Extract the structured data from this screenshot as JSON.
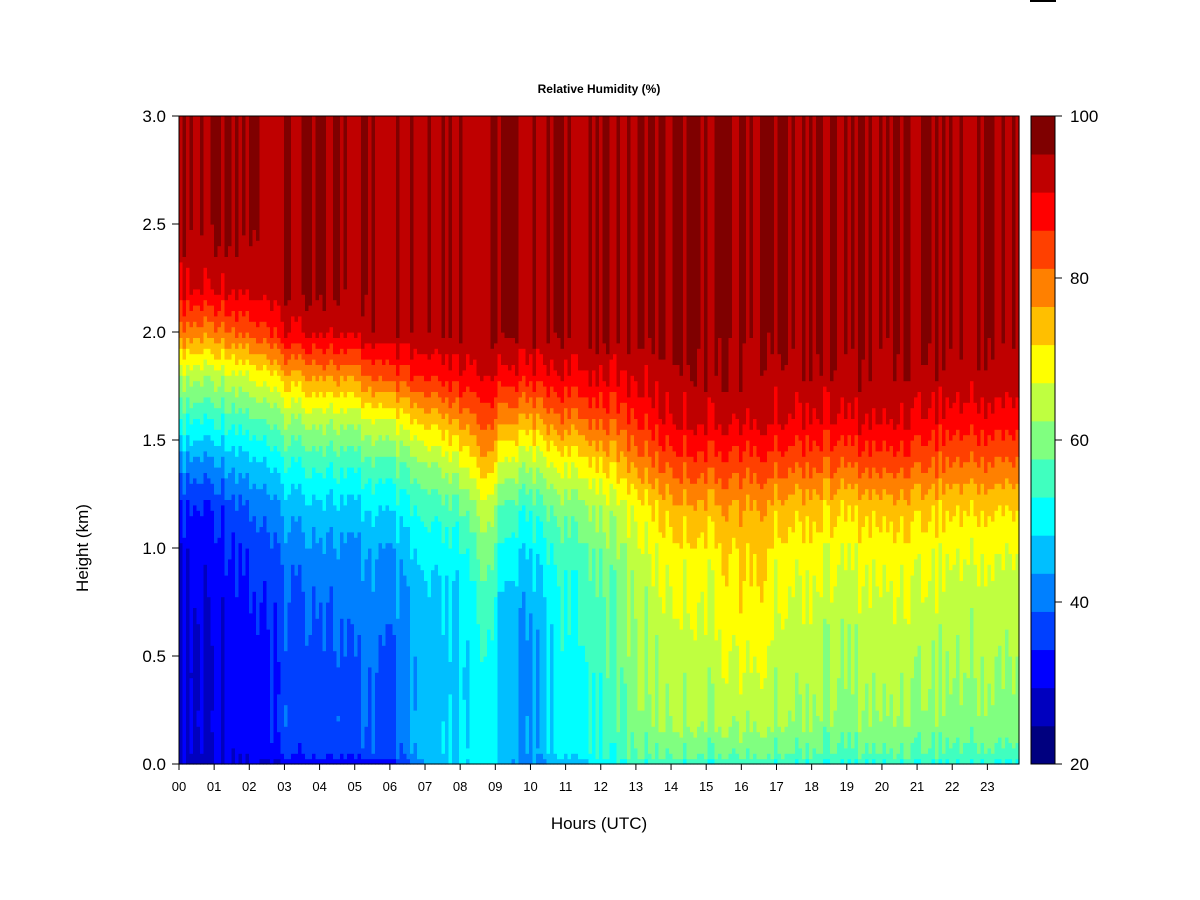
{
  "chart_data": {
    "type": "heatmap",
    "title": "Relative Humidity (%)",
    "xlabel": "Hours (UTC)",
    "ylabel": "Height (km)",
    "x_ticks": [
      "00",
      "01",
      "02",
      "03",
      "04",
      "05",
      "06",
      "07",
      "08",
      "09",
      "10",
      "11",
      "12",
      "13",
      "14",
      "15",
      "16",
      "17",
      "18",
      "19",
      "20",
      "21",
      "22",
      "23"
    ],
    "xlim": [
      0,
      23.9
    ],
    "y_ticks": [
      "0.0",
      "0.5",
      "1.0",
      "1.5",
      "2.0",
      "2.5",
      "3.0"
    ],
    "ylim": [
      0,
      3.0
    ],
    "colorbar": {
      "min": 20,
      "max": 100,
      "step": 5,
      "tick_labels": [
        "20",
        "40",
        "60",
        "80",
        "100"
      ],
      "colors": [
        "#00007F",
        "#0000BF",
        "#0000FF",
        "#0040FF",
        "#0080FF",
        "#00BFFF",
        "#00FFFF",
        "#40FFBF",
        "#80FF80",
        "#BFFF40",
        "#FFFF00",
        "#FFBF00",
        "#FF8000",
        "#FF4000",
        "#FF0000",
        "#BF0000",
        "#7F0000"
      ]
    },
    "profile_heights_km": [
      0.0,
      0.05,
      0.2,
      0.4,
      0.6,
      0.8,
      1.0,
      1.2,
      1.4,
      1.6,
      1.8,
      2.0,
      2.2,
      2.5,
      3.0
    ],
    "profiles": [
      {
        "hour": 0.0,
        "rh": [
          28,
          30,
          31,
          30,
          30,
          31,
          32,
          36,
          45,
          57,
          68,
          84,
          96,
          100,
          100
        ]
      },
      {
        "hour": 1.0,
        "rh": [
          28,
          29,
          30,
          29,
          30,
          31,
          32,
          35,
          44,
          55,
          66,
          82,
          95,
          100,
          100
        ]
      },
      {
        "hour": 2.0,
        "rh": [
          29,
          31,
          33,
          33,
          33,
          34,
          36,
          40,
          48,
          58,
          70,
          86,
          96,
          100,
          100
        ]
      },
      {
        "hour": 3.0,
        "rh": [
          30,
          36,
          38,
          37,
          38,
          39,
          42,
          47,
          55,
          65,
          78,
          94,
          100,
          100,
          100
        ]
      },
      {
        "hour": 4.0,
        "rh": [
          30,
          36,
          37,
          36,
          38,
          40,
          43,
          48,
          56,
          66,
          80,
          95,
          100,
          100,
          100
        ]
      },
      {
        "hour": 5.0,
        "rh": [
          30,
          38,
          40,
          40,
          42,
          43,
          45,
          50,
          58,
          68,
          83,
          97,
          100,
          100,
          100
        ]
      },
      {
        "hour": 6.0,
        "rh": [
          32,
          39,
          40,
          40,
          41,
          43,
          46,
          52,
          60,
          72,
          88,
          100,
          100,
          100,
          100
        ]
      },
      {
        "hour": 7.0,
        "rh": [
          45,
          49,
          49,
          48,
          49,
          50,
          53,
          58,
          66,
          78,
          92,
          100,
          100,
          100,
          100
        ]
      },
      {
        "hour": 8.0,
        "rh": [
          50,
          51,
          50,
          49,
          50,
          51,
          54,
          60,
          70,
          82,
          94,
          100,
          100,
          100,
          100
        ]
      },
      {
        "hour": 8.7,
        "rh": [
          55,
          55,
          54,
          55,
          57,
          60,
          64,
          70,
          80,
          88,
          96,
          100,
          100,
          100,
          100
        ]
      },
      {
        "hour": 9.3,
        "rh": [
          43,
          47,
          46,
          45,
          46,
          48,
          52,
          58,
          68,
          80,
          92,
          100,
          100,
          100,
          100
        ]
      },
      {
        "hour": 10.0,
        "rh": [
          41,
          46,
          45,
          44,
          45,
          47,
          51,
          57,
          67,
          80,
          93,
          100,
          100,
          100,
          100
        ]
      },
      {
        "hour": 11.0,
        "rh": [
          47,
          52,
          53,
          53,
          54,
          55,
          58,
          63,
          72,
          84,
          94,
          100,
          100,
          100,
          100
        ]
      },
      {
        "hour": 12.0,
        "rh": [
          50,
          55,
          56,
          56,
          57,
          58,
          61,
          66,
          75,
          86,
          95,
          100,
          100,
          100,
          100
        ]
      },
      {
        "hour": 13.0,
        "rh": [
          56,
          60,
          63,
          64,
          65,
          66,
          68,
          72,
          82,
          90,
          96,
          100,
          100,
          100,
          100
        ]
      },
      {
        "hour": 14.0,
        "rh": [
          56,
          61,
          65,
          67,
          68,
          70,
          73,
          78,
          87,
          95,
          98,
          100,
          100,
          100,
          100
        ]
      },
      {
        "hour": 15.0,
        "rh": [
          55,
          60,
          65,
          67,
          68,
          70,
          73,
          79,
          88,
          96,
          99,
          100,
          100,
          100,
          100
        ]
      },
      {
        "hour": 16.0,
        "rh": [
          56,
          61,
          66,
          69,
          72,
          74,
          76,
          80,
          88,
          96,
          99,
          100,
          100,
          100,
          100
        ]
      },
      {
        "hour": 16.5,
        "rh": [
          57,
          62,
          67,
          70,
          74,
          75,
          77,
          81,
          89,
          97,
          99,
          100,
          100,
          100,
          100
        ]
      },
      {
        "hour": 17.0,
        "rh": [
          55,
          60,
          65,
          67,
          68,
          70,
          73,
          78,
          87,
          95,
          98,
          100,
          100,
          100,
          100
        ]
      },
      {
        "hour": 18.0,
        "rh": [
          54,
          59,
          64,
          66,
          67,
          69,
          72,
          77,
          86,
          94,
          98,
          100,
          100,
          100,
          100
        ]
      },
      {
        "hour": 19.0,
        "rh": [
          54,
          59,
          63,
          65,
          66,
          68,
          71,
          76,
          86,
          95,
          99,
          100,
          100,
          100,
          100
        ]
      },
      {
        "hour": 20.0,
        "rh": [
          55,
          60,
          65,
          67,
          68,
          70,
          73,
          78,
          88,
          96,
          99,
          100,
          100,
          100,
          100
        ]
      },
      {
        "hour": 21.0,
        "rh": [
          54,
          59,
          63,
          65,
          67,
          69,
          72,
          77,
          86,
          94,
          98,
          100,
          100,
          100,
          100
        ]
      },
      {
        "hour": 22.0,
        "rh": [
          54,
          59,
          63,
          65,
          66,
          68,
          71,
          76,
          85,
          93,
          98,
          100,
          100,
          100,
          100
        ]
      },
      {
        "hour": 23.0,
        "rh": [
          54,
          59,
          63,
          65,
          66,
          68,
          71,
          76,
          85,
          93,
          98,
          100,
          100,
          100,
          100
        ]
      },
      {
        "hour": 23.9,
        "rh": [
          54,
          59,
          63,
          65,
          66,
          68,
          71,
          76,
          85,
          93,
          98,
          100,
          100,
          100,
          100
        ]
      }
    ]
  }
}
